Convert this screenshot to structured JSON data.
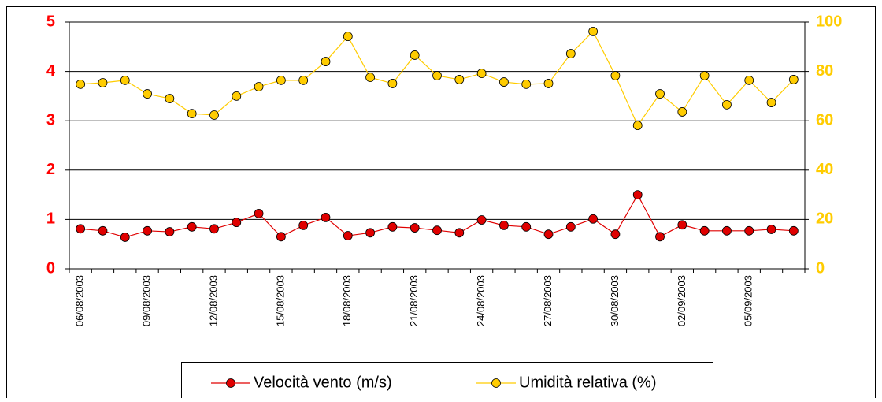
{
  "chart_data": {
    "type": "line",
    "categories": [
      "06/08/2003",
      null,
      null,
      "09/08/2003",
      null,
      null,
      "12/08/2003",
      null,
      null,
      "15/08/2003",
      null,
      null,
      "18/08/2003",
      null,
      null,
      "21/08/2003",
      null,
      null,
      "24/08/2003",
      null,
      null,
      "27/08/2003",
      null,
      null,
      "30/08/2003",
      null,
      null,
      "02/09/2003",
      null,
      null,
      "05/09/2003",
      null,
      null
    ],
    "series": [
      {
        "name": "Velocità vento (m/s)",
        "color": "#e00000",
        "axis": "y",
        "values": [
          0.81,
          0.77,
          0.64,
          0.77,
          0.75,
          0.85,
          0.81,
          0.94,
          1.12,
          0.65,
          0.88,
          1.04,
          0.67,
          0.73,
          0.85,
          0.83,
          0.78,
          0.73,
          0.99,
          0.88,
          0.85,
          0.7,
          0.85,
          1.01,
          0.7,
          1.5,
          0.65,
          0.89,
          0.77,
          0.77,
          0.77,
          0.8,
          0.77
        ]
      },
      {
        "name": "Umidità relativa (%)",
        "color": "#ffcc00",
        "axis": "y2",
        "values": [
          74.8,
          75.4,
          76.4,
          70.9,
          69.0,
          62.9,
          62.3,
          70.0,
          73.8,
          76.4,
          76.4,
          84.0,
          94.2,
          77.6,
          75.1,
          86.6,
          78.3,
          76.7,
          79.2,
          75.7,
          74.8,
          75.1,
          87.2,
          96.2,
          78.3,
          58.1,
          70.9,
          63.6,
          78.3,
          66.5,
          76.4,
          67.4,
          76.7
        ]
      }
    ],
    "ylim": [
      0,
      5
    ],
    "yticks": [
      0,
      1,
      2,
      3,
      4,
      5
    ],
    "y2lim": [
      0,
      100
    ],
    "y2ticks": [
      0,
      20,
      40,
      60,
      80,
      100
    ],
    "grid": true,
    "legend": "bottom"
  }
}
